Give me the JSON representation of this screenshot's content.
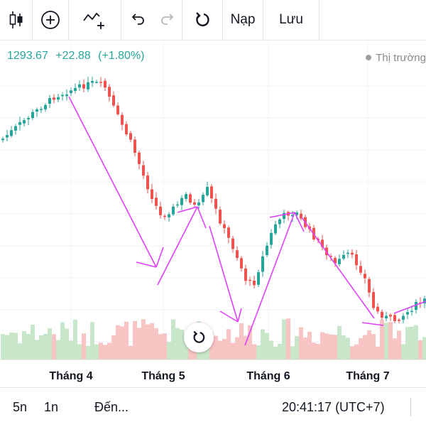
{
  "toolbar": {
    "items": [
      {
        "icon": "candlestick-icon"
      },
      {
        "icon": "add-circle-icon"
      },
      {
        "icon": "add-indicator-icon"
      },
      {
        "icon": "undo-icon"
      },
      {
        "icon": "redo-icon"
      },
      {
        "icon": "reset-icon"
      }
    ],
    "load_label": "Nạp",
    "save_label": "Lưu"
  },
  "quote": {
    "price": "1293.67",
    "change": "+22.88",
    "change_pct": "(+1.80%)",
    "color": "#26a69a"
  },
  "market_status": "Thị trường",
  "footer": {
    "range_5d": "5n",
    "range_1d": "1n",
    "goto": "Đến...",
    "time": "20:41:17 (UTC+7)"
  },
  "chart_data": {
    "type": "candlestick",
    "x_tick_labels": [
      "Tháng 4",
      "Tháng 5",
      "Tháng 6",
      "Tháng 7"
    ],
    "colors": {
      "up": "#26a69a",
      "down": "#ef5350",
      "drawing": "#e040fb"
    },
    "grid": true,
    "volume_panel": true
  }
}
